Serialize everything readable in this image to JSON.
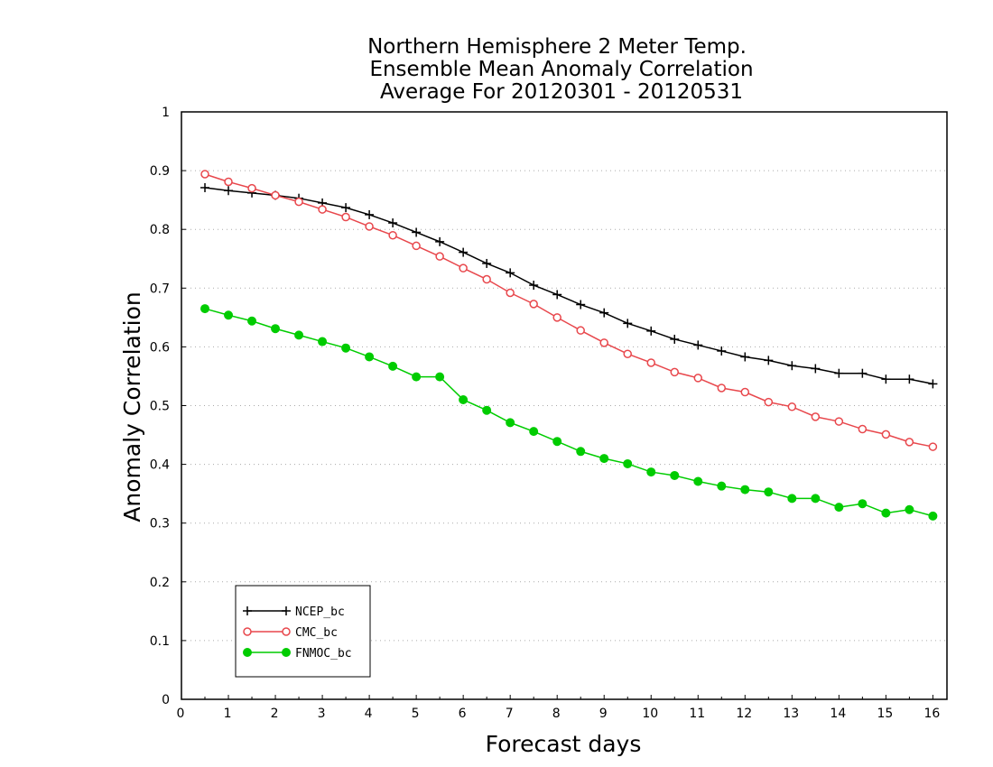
{
  "chart_data": {
    "type": "line",
    "title": [
      "Northern Hemisphere 2 Meter Temp.",
      "Ensemble Mean Anomaly Correlation",
      "Average For 20120301 - 20120531"
    ],
    "xlabel": "Forecast days",
    "ylabel": "Anomaly Correlation",
    "xlim": [
      0,
      16.3
    ],
    "ylim": [
      0,
      1
    ],
    "x_ticks": [
      0,
      1,
      2,
      3,
      4,
      5,
      6,
      7,
      8,
      9,
      10,
      11,
      12,
      13,
      14,
      15,
      16
    ],
    "y_ticks": [
      0,
      0.1,
      0.2,
      0.3,
      0.4,
      0.5,
      0.6,
      0.7,
      0.8,
      0.9,
      1
    ],
    "y_tick_labels": [
      "0",
      "0.1",
      "0.2",
      "0.3",
      "0.4",
      "0.5",
      "0.6",
      "0.7",
      "0.8",
      "0.9",
      "1"
    ],
    "grid": "horizontal dotted",
    "legend_position": "bottom-left",
    "x": [
      0.5,
      1,
      1.5,
      2,
      2.5,
      3,
      3.5,
      4,
      4.5,
      5,
      5.5,
      6,
      6.5,
      7,
      7.5,
      8,
      8.5,
      9,
      9.5,
      10,
      10.5,
      11,
      11.5,
      12,
      12.5,
      13,
      13.5,
      14,
      14.5,
      15,
      15.5,
      16
    ],
    "series": [
      {
        "name": "NCEP_bc",
        "color": "#000000",
        "marker": "plus",
        "values": [
          0.871,
          0.866,
          0.862,
          0.858,
          0.853,
          0.845,
          0.837,
          0.825,
          0.811,
          0.795,
          0.779,
          0.761,
          0.742,
          0.726,
          0.705,
          0.689,
          0.672,
          0.658,
          0.64,
          0.627,
          0.613,
          0.603,
          0.593,
          0.583,
          0.577,
          0.568,
          0.563,
          0.555,
          0.555,
          0.545,
          0.545,
          0.537
        ]
      },
      {
        "name": "CMC_bc",
        "color": "#e8474c",
        "marker": "open-circle",
        "values": [
          0.894,
          0.881,
          0.87,
          0.858,
          0.847,
          0.834,
          0.821,
          0.805,
          0.79,
          0.772,
          0.754,
          0.734,
          0.715,
          0.692,
          0.673,
          0.65,
          0.628,
          0.607,
          0.588,
          0.573,
          0.557,
          0.547,
          0.53,
          0.523,
          0.506,
          0.498,
          0.481,
          0.473,
          0.46,
          0.451,
          0.438,
          0.43
        ]
      },
      {
        "name": "FNMOC_bc",
        "color": "#00cc00",
        "marker": "filled-circle",
        "values": [
          0.665,
          0.654,
          0.644,
          0.631,
          0.62,
          0.609,
          0.598,
          0.583,
          0.567,
          0.549,
          0.549,
          0.51,
          0.492,
          0.471,
          0.456,
          0.439,
          0.422,
          0.41,
          0.401,
          0.387,
          0.381,
          0.371,
          0.363,
          0.357,
          0.353,
          0.342,
          0.342,
          0.327,
          0.333,
          0.317,
          0.323,
          0.312
        ]
      }
    ]
  }
}
